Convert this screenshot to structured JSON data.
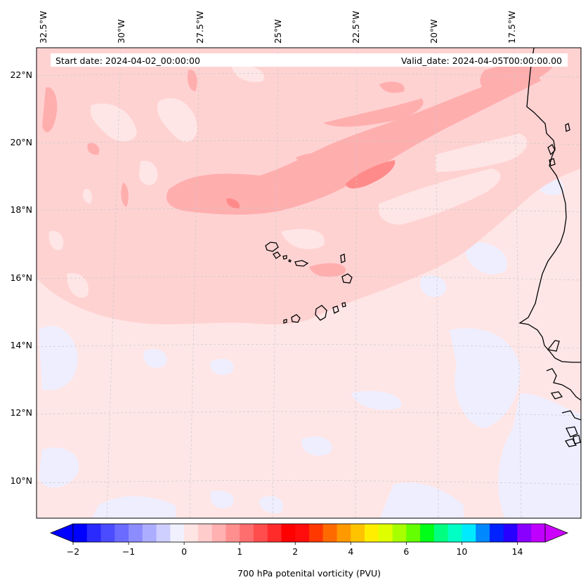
{
  "map": {
    "start_date": "Start date: 2024-04-02_00:00:00",
    "valid_date": "Valid_date: 2024-04-05T00:00:00.00",
    "lon_labels": [
      "32.5°W",
      "30°W",
      "27.5°W",
      "25°W",
      "22.5°W",
      "20°W",
      "17.5°W"
    ],
    "lat_labels": [
      "22°N",
      "20°N",
      "18°N",
      "16°N",
      "14°N",
      "12°N",
      "10°N"
    ],
    "extent": {
      "lon_min": -32.6,
      "lon_max": -15.2,
      "lat_min": 8.9,
      "lat_max": 22.8
    },
    "variable": "potential vorticity",
    "level_hpa": 700
  },
  "colorbar": {
    "label": "700 hPa potenital vorticity (PVU)",
    "tick_labels": [
      "−2",
      "−1",
      "0",
      "1",
      "2",
      "4",
      "6",
      "10",
      "14"
    ],
    "colors": [
      "#0000ff",
      "#2a2aff",
      "#4b4bff",
      "#6b6bff",
      "#8c8cff",
      "#adadff",
      "#cfcfff",
      "#f0f0ff",
      "#ffe4e4",
      "#ffcccc",
      "#ffb0b0",
      "#ff8f8f",
      "#ff6e6e",
      "#ff4d4d",
      "#ff2b2b",
      "#ff0000",
      "#ff0c0c",
      "#ff3800",
      "#ff6a00",
      "#ff9900",
      "#ffc300",
      "#ffee00",
      "#dfff00",
      "#a8ff00",
      "#64ff00",
      "#00ff18",
      "#00ff80",
      "#00ffc4",
      "#00eaff",
      "#0088ff",
      "#0022ff",
      "#2800ff",
      "#8a00ff",
      "#c000ff"
    ],
    "extend_low_color": "#0000ff",
    "extend_high_color": "#cc00ff"
  },
  "field_colors": {
    "background": "#ffe6e6",
    "level_1": "#ffd2d2",
    "level_2": "#ffaeae",
    "level_3": "#ff8a8a",
    "negative": "#eeeeff",
    "coast": "#000000"
  }
}
